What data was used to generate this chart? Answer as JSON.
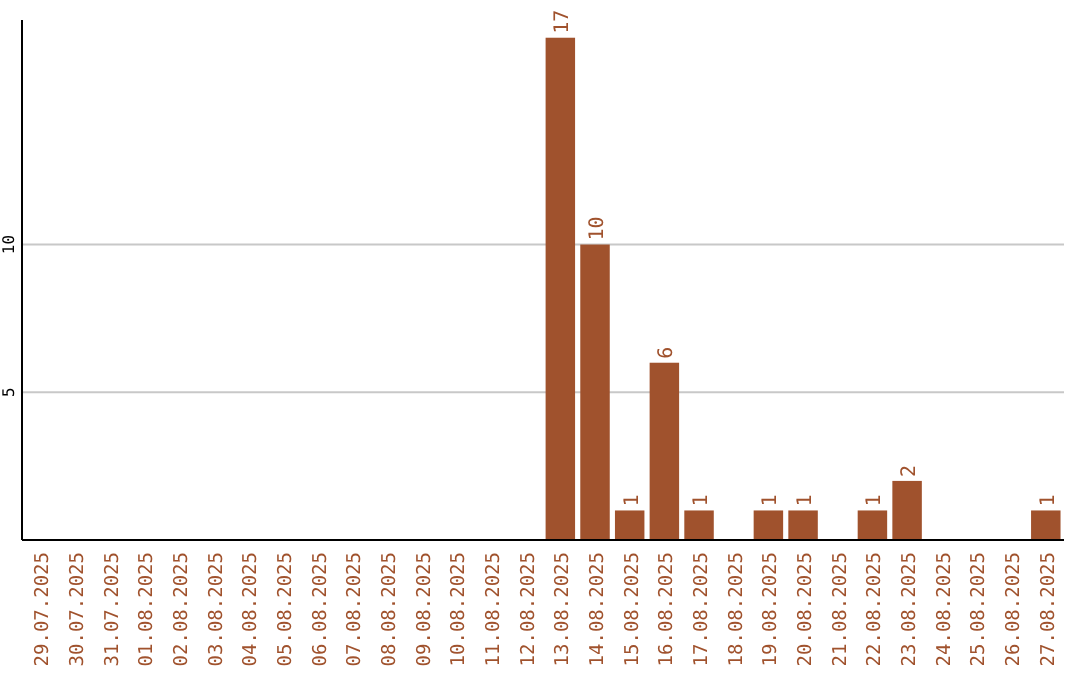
{
  "chart_data": {
    "type": "bar",
    "categories": [
      "29.07.2025",
      "30.07.2025",
      "31.07.2025",
      "01.08.2025",
      "02.08.2025",
      "03.08.2025",
      "04.08.2025",
      "05.08.2025",
      "06.08.2025",
      "07.08.2025",
      "08.08.2025",
      "09.08.2025",
      "10.08.2025",
      "11.08.2025",
      "12.08.2025",
      "13.08.2025",
      "14.08.2025",
      "15.08.2025",
      "16.08.2025",
      "17.08.2025",
      "18.08.2025",
      "19.08.2025",
      "20.08.2025",
      "21.08.2025",
      "22.08.2025",
      "23.08.2025",
      "24.08.2025",
      "25.08.2025",
      "26.08.2025",
      "27.08.2025"
    ],
    "values": [
      0,
      0,
      0,
      0,
      0,
      0,
      0,
      0,
      0,
      0,
      0,
      0,
      0,
      0,
      0,
      17,
      10,
      1,
      6,
      1,
      0,
      1,
      1,
      0,
      1,
      2,
      0,
      0,
      0,
      1
    ],
    "value_labels": [
      null,
      null,
      null,
      null,
      null,
      null,
      null,
      null,
      null,
      null,
      null,
      null,
      null,
      null,
      null,
      "17",
      "10",
      "1",
      "6",
      "1",
      null,
      "1",
      "1",
      null,
      "1",
      "2",
      null,
      null,
      null,
      "1"
    ],
    "color": "#a0522d",
    "ylim": [
      0,
      17.6
    ],
    "yticks": [
      5,
      10
    ],
    "grid": "y"
  }
}
